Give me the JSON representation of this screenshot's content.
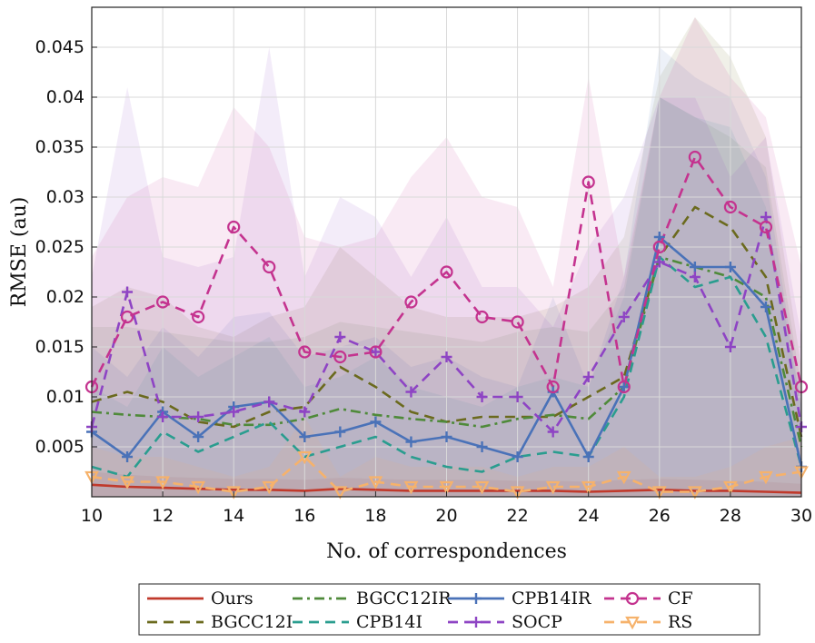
{
  "chart_data": {
    "type": "line",
    "title": "",
    "xlabel": "No. of correspondences",
    "ylabel": "RMSE (au)",
    "xlim": [
      10,
      30
    ],
    "ylim": [
      0,
      0.049
    ],
    "xticks": [
      10,
      12,
      14,
      16,
      18,
      20,
      22,
      24,
      26,
      28,
      30
    ],
    "xtick_labels": [
      "10",
      "12",
      "14",
      "16",
      "18",
      "20",
      "22",
      "24",
      "26",
      "28",
      "30"
    ],
    "yticks": [
      0.005,
      0.01,
      0.015,
      0.02,
      0.025,
      0.03,
      0.035,
      0.04,
      0.045
    ],
    "ytick_labels": [
      "0.005",
      "0.01",
      "0.015",
      "0.02",
      "0.025",
      "0.03",
      "0.035",
      "0.04",
      "0.045"
    ],
    "grid": true,
    "legend_position": "bottom-outside",
    "series": [
      {
        "name": "Ours",
        "color": "#c0392b",
        "dash": "solid",
        "marker": "none",
        "x": [
          10,
          11,
          12,
          13,
          14,
          15,
          16,
          17,
          18,
          19,
          20,
          21,
          22,
          23,
          24,
          25,
          26,
          27,
          28,
          29,
          30
        ],
        "y": [
          0.0012,
          0.001,
          0.0009,
          0.0008,
          0.0007,
          0.0007,
          0.0006,
          0.0008,
          0.0007,
          0.0006,
          0.0006,
          0.0006,
          0.0006,
          0.0006,
          0.0005,
          0.0006,
          0.0007,
          0.0006,
          0.0006,
          0.0005,
          0.0004
        ],
        "upper": [
          0.0025,
          0.0022,
          0.002,
          0.0019,
          0.0018,
          0.0018,
          0.0017,
          0.0019,
          0.0018,
          0.0017,
          0.0017,
          0.0017,
          0.0016,
          0.0016,
          0.0015,
          0.0017,
          0.0018,
          0.0017,
          0.0016,
          0.0015,
          0.0013
        ]
      },
      {
        "name": "BGCC12I",
        "color": "#6b6a1e",
        "dash": "dash",
        "marker": "none",
        "x": [
          10,
          11,
          12,
          13,
          14,
          15,
          16,
          17,
          18,
          19,
          20,
          21,
          22,
          23,
          24,
          25,
          26,
          27,
          28,
          29,
          30
        ],
        "y": [
          0.0095,
          0.0105,
          0.0095,
          0.0075,
          0.007,
          0.0085,
          0.009,
          0.013,
          0.011,
          0.0085,
          0.0075,
          0.008,
          0.008,
          0.008,
          0.01,
          0.012,
          0.024,
          0.029,
          0.027,
          0.022,
          0.006
        ],
        "upper": [
          0.019,
          0.021,
          0.02,
          0.017,
          0.016,
          0.018,
          0.019,
          0.025,
          0.022,
          0.019,
          0.018,
          0.018,
          0.018,
          0.019,
          0.021,
          0.026,
          0.042,
          0.048,
          0.044,
          0.036,
          0.013
        ]
      },
      {
        "name": "BGCC12IR",
        "color": "#4f8a3a",
        "dash": "dashdot",
        "marker": "none",
        "x": [
          10,
          11,
          12,
          13,
          14,
          15,
          16,
          17,
          18,
          19,
          20,
          21,
          22,
          23,
          24,
          25,
          26,
          27,
          28,
          29,
          30
        ],
        "y": [
          0.0085,
          0.0082,
          0.008,
          0.0078,
          0.0072,
          0.0072,
          0.0078,
          0.0088,
          0.0082,
          0.0078,
          0.0075,
          0.007,
          0.0078,
          0.0082,
          0.0078,
          0.011,
          0.024,
          0.023,
          0.022,
          0.02,
          0.005
        ],
        "upper": [
          0.017,
          0.017,
          0.0165,
          0.016,
          0.0155,
          0.0155,
          0.016,
          0.0175,
          0.017,
          0.0165,
          0.016,
          0.0155,
          0.0165,
          0.017,
          0.0165,
          0.021,
          0.04,
          0.038,
          0.036,
          0.033,
          0.011
        ]
      },
      {
        "name": "CPB14I",
        "color": "#2a9d8f",
        "dash": "dash",
        "marker": "none",
        "x": [
          10,
          11,
          12,
          13,
          14,
          15,
          16,
          17,
          18,
          19,
          20,
          21,
          22,
          23,
          24,
          25,
          26,
          27,
          28,
          29,
          30
        ],
        "y": [
          0.003,
          0.002,
          0.0065,
          0.0045,
          0.006,
          0.0075,
          0.004,
          0.005,
          0.006,
          0.004,
          0.003,
          0.0025,
          0.004,
          0.0045,
          0.004,
          0.01,
          0.024,
          0.021,
          0.022,
          0.016,
          0.003
        ],
        "upper": [
          0.011,
          0.009,
          0.015,
          0.012,
          0.014,
          0.016,
          0.011,
          0.012,
          0.014,
          0.011,
          0.01,
          0.009,
          0.011,
          0.012,
          0.011,
          0.02,
          0.04,
          0.038,
          0.037,
          0.029,
          0.009
        ]
      },
      {
        "name": "CPB14IR",
        "color": "#4a72b8",
        "dash": "solid",
        "marker": "plus",
        "x": [
          10,
          11,
          12,
          13,
          14,
          15,
          16,
          17,
          18,
          19,
          20,
          21,
          22,
          23,
          24,
          25,
          26,
          27,
          28,
          29,
          30
        ],
        "y": [
          0.0065,
          0.004,
          0.0085,
          0.006,
          0.009,
          0.0095,
          0.006,
          0.0065,
          0.0075,
          0.0055,
          0.006,
          0.005,
          0.004,
          0.0105,
          0.004,
          0.011,
          0.026,
          0.023,
          0.023,
          0.019,
          0.003
        ],
        "upper": [
          0.015,
          0.012,
          0.017,
          0.014,
          0.018,
          0.0185,
          0.014,
          0.015,
          0.016,
          0.013,
          0.014,
          0.012,
          0.011,
          0.02,
          0.011,
          0.022,
          0.045,
          0.042,
          0.04,
          0.032,
          0.009
        ]
      },
      {
        "name": "SOCP",
        "color": "#8e44c4",
        "dash": "dash",
        "marker": "plus",
        "x": [
          10,
          11,
          12,
          13,
          14,
          15,
          16,
          17,
          18,
          19,
          20,
          21,
          22,
          23,
          24,
          25,
          26,
          27,
          28,
          29,
          30
        ],
        "y": [
          0.007,
          0.0205,
          0.008,
          0.008,
          0.0085,
          0.0095,
          0.0085,
          0.016,
          0.0145,
          0.0105,
          0.014,
          0.01,
          0.01,
          0.0065,
          0.012,
          0.018,
          0.0235,
          0.022,
          0.015,
          0.028,
          0.007
        ],
        "upper": [
          0.022,
          0.041,
          0.024,
          0.023,
          0.024,
          0.045,
          0.022,
          0.03,
          0.028,
          0.022,
          0.028,
          0.021,
          0.021,
          0.017,
          0.025,
          0.03,
          0.04,
          0.04,
          0.032,
          0.036,
          0.016
        ]
      },
      {
        "name": "CF",
        "color": "#c4338f",
        "dash": "dash",
        "marker": "circle",
        "x": [
          10,
          11,
          12,
          13,
          14,
          15,
          16,
          17,
          18,
          19,
          20,
          21,
          22,
          23,
          24,
          25,
          26,
          27,
          28,
          29,
          30
        ],
        "y": [
          0.011,
          0.018,
          0.0195,
          0.018,
          0.027,
          0.023,
          0.0145,
          0.014,
          0.0145,
          0.0195,
          0.0225,
          0.018,
          0.0175,
          0.011,
          0.0315,
          0.011,
          0.025,
          0.034,
          0.029,
          0.027,
          0.011
        ],
        "upper": [
          0.024,
          0.03,
          0.032,
          0.031,
          0.039,
          0.035,
          0.026,
          0.025,
          0.026,
          0.032,
          0.036,
          0.03,
          0.029,
          0.021,
          0.042,
          0.022,
          0.04,
          0.048,
          0.042,
          0.038,
          0.023
        ]
      },
      {
        "name": "RS",
        "color": "#f6b26b",
        "dash": "dash",
        "marker": "triangle-down",
        "x": [
          10,
          11,
          12,
          13,
          14,
          15,
          16,
          17,
          18,
          19,
          20,
          21,
          22,
          23,
          24,
          25,
          26,
          27,
          28,
          29,
          30
        ],
        "y": [
          0.002,
          0.0015,
          0.0015,
          0.001,
          0.0005,
          0.001,
          0.004,
          0.0005,
          0.0015,
          0.001,
          0.001,
          0.001,
          0.0005,
          0.001,
          0.001,
          0.002,
          0.0005,
          0.0005,
          0.001,
          0.002,
          0.0025
        ],
        "upper": [
          0.005,
          0.004,
          0.004,
          0.003,
          0.002,
          0.003,
          0.008,
          0.002,
          0.004,
          0.003,
          0.003,
          0.003,
          0.002,
          0.003,
          0.003,
          0.005,
          0.002,
          0.002,
          0.003,
          0.005,
          0.006
        ]
      }
    ]
  }
}
